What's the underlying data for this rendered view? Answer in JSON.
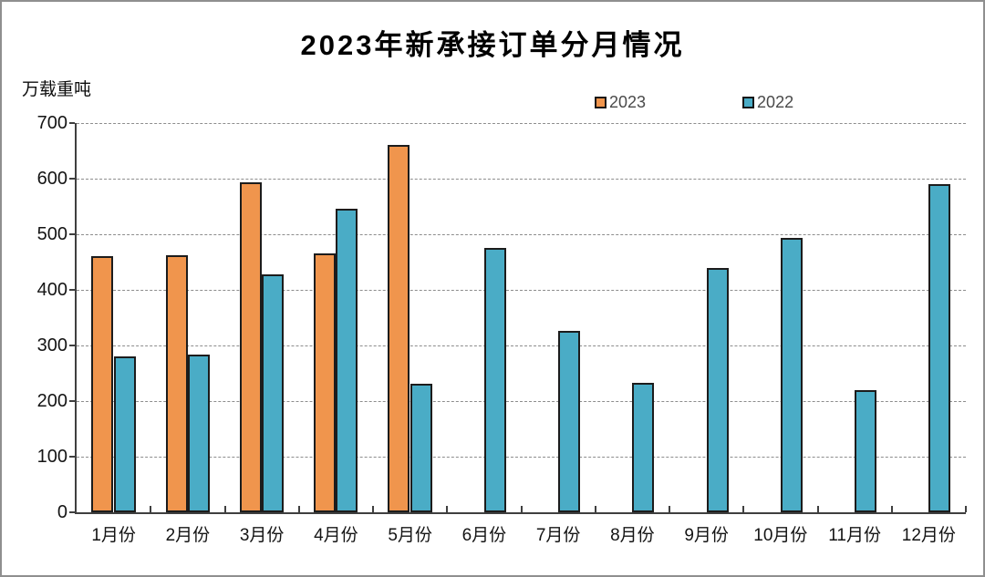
{
  "chart_data": {
    "type": "bar",
    "title": "2023年新承接订单分月情况",
    "ylabel": "万载重吨",
    "xlabel": "",
    "categories": [
      "1月份",
      "2月份",
      "3月份",
      "4月份",
      "5月份",
      "6月份",
      "7月份",
      "8月份",
      "9月份",
      "10月份",
      "11月份",
      "12月份"
    ],
    "series": [
      {
        "name": "2023",
        "color": "#F0954D",
        "values": [
          460,
          462,
          593,
          466,
          660,
          null,
          null,
          null,
          null,
          null,
          null,
          null
        ]
      },
      {
        "name": "2022",
        "color": "#4AACC6",
        "values": [
          280,
          283,
          428,
          546,
          231,
          476,
          326,
          232,
          440,
          493,
          220,
          591
        ]
      }
    ],
    "ylim": [
      0,
      700
    ],
    "yticks": [
      0,
      100,
      200,
      300,
      400,
      500,
      600,
      700
    ],
    "grid": "horizontal-dashed",
    "legend_position": "top",
    "bar_border_color": "#1c1c1c",
    "axis_color": "#3f3f3f"
  }
}
